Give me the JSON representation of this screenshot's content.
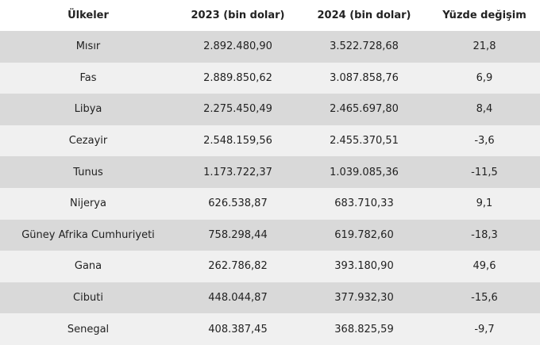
{
  "table": {
    "headers": [
      "Ülkeler",
      "2023 (bin dolar)",
      "2024 (bin dolar)",
      "Yüzde değişim"
    ],
    "rows": [
      [
        "Mısır",
        "2.892.480,90",
        "3.522.728,68",
        "21,8"
      ],
      [
        "Fas",
        "2.889.850,62",
        "3.087.858,76",
        "6,9"
      ],
      [
        "Libya",
        "2.275.450,49",
        "2.465.697,80",
        "8,4"
      ],
      [
        "Cezayir",
        "2.548.159,56",
        "2.455.370,51",
        "-3,6"
      ],
      [
        "Tunus",
        "1.173.722,37",
        "1.039.085,36",
        "-11,5"
      ],
      [
        "Nijerya",
        "626.538,87",
        "683.710,33",
        "9,1"
      ],
      [
        "Güney Afrika Cumhuriyeti",
        "758.298,44",
        "619.782,60",
        "-18,3"
      ],
      [
        "Gana",
        "262.786,82",
        "393.180,90",
        "49,6"
      ],
      [
        "Cibuti",
        "448.044,87",
        "377.932,30",
        "-15,6"
      ],
      [
        "Senegal",
        "408.387,45",
        "368.825,59",
        "-9,7"
      ]
    ],
    "colors": {
      "row_odd": "#d9d9d9",
      "row_even": "#f0f0f0",
      "header": "#ffffff",
      "text": "#222222"
    }
  }
}
